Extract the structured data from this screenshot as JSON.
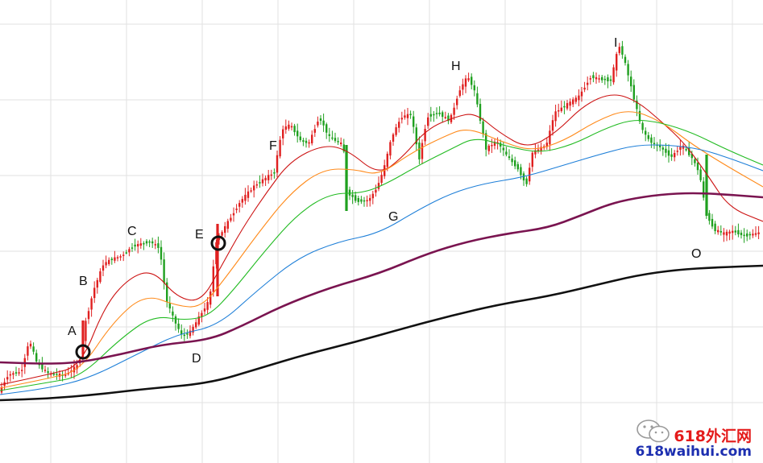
{
  "chart_data": {
    "type": "candlestick",
    "title": "",
    "xlabel": "",
    "ylabel": "",
    "ylim": [
      0,
      575
    ],
    "grid": true,
    "legend": "none",
    "colors": {
      "up": "#e02020",
      "down": "#1fa01f",
      "ma_fast": "#cc1111",
      "ma_orange": "#ff8a1a",
      "ma_green": "#22bb22",
      "ma_blue": "#1e7fd8",
      "ma_purple": "#7a1450",
      "ma_black": "#111111",
      "grid": "#e2e2e2",
      "marker": "#111111"
    },
    "price_path": [
      [
        0,
        488
      ],
      [
        12,
        465
      ],
      [
        28,
        462
      ],
      [
        38,
        422
      ],
      [
        48,
        452
      ],
      [
        62,
        464
      ],
      [
        82,
        466
      ],
      [
        100,
        452
      ],
      [
        108,
        400
      ],
      [
        118,
        360
      ],
      [
        130,
        328
      ],
      [
        140,
        322
      ],
      [
        152,
        318
      ],
      [
        168,
        305
      ],
      [
        188,
        300
      ],
      [
        200,
        308
      ],
      [
        208,
        372
      ],
      [
        218,
        398
      ],
      [
        228,
        418
      ],
      [
        238,
        412
      ],
      [
        250,
        392
      ],
      [
        262,
        372
      ],
      [
        270,
        300
      ],
      [
        285,
        275
      ],
      [
        300,
        250
      ],
      [
        318,
        230
      ],
      [
        342,
        214
      ],
      [
        352,
        160
      ],
      [
        362,
        155
      ],
      [
        375,
        175
      ],
      [
        385,
        178
      ],
      [
        398,
        145
      ],
      [
        410,
        170
      ],
      [
        428,
        180
      ],
      [
        432,
        238
      ],
      [
        445,
        250
      ],
      [
        460,
        248
      ],
      [
        470,
        232
      ],
      [
        478,
        210
      ],
      [
        488,
        170
      ],
      [
        500,
        145
      ],
      [
        512,
        142
      ],
      [
        522,
        198
      ],
      [
        532,
        145
      ],
      [
        545,
        140
      ],
      [
        560,
        150
      ],
      [
        572,
        112
      ],
      [
        582,
        95
      ],
      [
        590,
        110
      ],
      [
        598,
        150
      ],
      [
        605,
        185
      ],
      [
        618,
        175
      ],
      [
        632,
        195
      ],
      [
        645,
        210
      ],
      [
        655,
        230
      ],
      [
        662,
        190
      ],
      [
        680,
        180
      ],
      [
        690,
        140
      ],
      [
        705,
        130
      ],
      [
        720,
        120
      ],
      [
        735,
        95
      ],
      [
        745,
        98
      ],
      [
        760,
        100
      ],
      [
        770,
        55
      ],
      [
        778,
        80
      ],
      [
        788,
        120
      ],
      [
        798,
        160
      ],
      [
        808,
        175
      ],
      [
        820,
        182
      ],
      [
        835,
        195
      ],
      [
        848,
        180
      ],
      [
        860,
        195
      ],
      [
        870,
        215
      ],
      [
        878,
        265
      ],
      [
        888,
        285
      ],
      [
        900,
        290
      ],
      [
        912,
        287
      ],
      [
        925,
        293
      ],
      [
        940,
        290
      ],
      [
        947,
        288
      ]
    ],
    "moving_averages": [
      {
        "color": "#cc1111",
        "points": [
          [
            0,
            478
          ],
          [
            60,
            465
          ],
          [
            100,
            455
          ],
          [
            130,
            380
          ],
          [
            160,
            345
          ],
          [
            190,
            335
          ],
          [
            220,
            370
          ],
          [
            250,
            375
          ],
          [
            275,
            330
          ],
          [
            300,
            285
          ],
          [
            330,
            240
          ],
          [
            360,
            200
          ],
          [
            400,
            180
          ],
          [
            430,
            185
          ],
          [
            470,
            218
          ],
          [
            500,
            195
          ],
          [
            530,
            160
          ],
          [
            565,
            145
          ],
          [
            590,
            140
          ],
          [
            620,
            165
          ],
          [
            655,
            185
          ],
          [
            690,
            165
          ],
          [
            725,
            130
          ],
          [
            760,
            115
          ],
          [
            790,
            125
          ],
          [
            820,
            150
          ],
          [
            850,
            178
          ],
          [
            880,
            220
          ],
          [
            905,
            258
          ],
          [
            947,
            275
          ]
        ]
      },
      {
        "color": "#ff8a1a",
        "points": [
          [
            0,
            482
          ],
          [
            60,
            470
          ],
          [
            100,
            460
          ],
          [
            140,
            400
          ],
          [
            180,
            365
          ],
          [
            220,
            380
          ],
          [
            250,
            382
          ],
          [
            280,
            345
          ],
          [
            320,
            290
          ],
          [
            360,
            240
          ],
          [
            400,
            210
          ],
          [
            440,
            210
          ],
          [
            470,
            218
          ],
          [
            510,
            190
          ],
          [
            550,
            170
          ],
          [
            580,
            158
          ],
          [
            620,
            175
          ],
          [
            660,
            188
          ],
          [
            700,
            175
          ],
          [
            740,
            150
          ],
          [
            780,
            135
          ],
          [
            820,
            150
          ],
          [
            860,
            180
          ],
          [
            900,
            205
          ],
          [
            947,
            232
          ]
        ]
      },
      {
        "color": "#22bb22",
        "points": [
          [
            0,
            485
          ],
          [
            60,
            475
          ],
          [
            100,
            468
          ],
          [
            150,
            420
          ],
          [
            190,
            392
          ],
          [
            230,
            398
          ],
          [
            260,
            392
          ],
          [
            290,
            360
          ],
          [
            330,
            310
          ],
          [
            370,
            265
          ],
          [
            410,
            240
          ],
          [
            450,
            240
          ],
          [
            480,
            228
          ],
          [
            520,
            205
          ],
          [
            560,
            185
          ],
          [
            590,
            170
          ],
          [
            630,
            182
          ],
          [
            670,
            190
          ],
          [
            710,
            180
          ],
          [
            750,
            160
          ],
          [
            785,
            148
          ],
          [
            820,
            152
          ],
          [
            860,
            165
          ],
          [
            900,
            185
          ],
          [
            947,
            205
          ]
        ]
      },
      {
        "color": "#1e7fd8",
        "points": [
          [
            0,
            490
          ],
          [
            60,
            482
          ],
          [
            110,
            470
          ],
          [
            170,
            440
          ],
          [
            220,
            415
          ],
          [
            270,
            405
          ],
          [
            320,
            360
          ],
          [
            370,
            320
          ],
          [
            420,
            300
          ],
          [
            470,
            290
          ],
          [
            520,
            260
          ],
          [
            560,
            240
          ],
          [
            600,
            228
          ],
          [
            650,
            220
          ],
          [
            700,
            205
          ],
          [
            750,
            190
          ],
          [
            790,
            180
          ],
          [
            830,
            180
          ],
          [
            870,
            185
          ],
          [
            910,
            198
          ],
          [
            947,
            212
          ]
        ]
      },
      {
        "color": "#7a1450",
        "points": [
          [
            0,
            450
          ],
          [
            60,
            452
          ],
          [
            100,
            450
          ],
          [
            150,
            440
          ],
          [
            200,
            428
          ],
          [
            260,
            422
          ],
          [
            300,
            405
          ],
          [
            350,
            380
          ],
          [
            410,
            357
          ],
          [
            470,
            340
          ],
          [
            530,
            315
          ],
          [
            580,
            300
          ],
          [
            630,
            290
          ],
          [
            680,
            283
          ],
          [
            720,
            268
          ],
          [
            760,
            252
          ],
          [
            800,
            244
          ],
          [
            840,
            240
          ],
          [
            880,
            240
          ],
          [
            947,
            245
          ]
        ]
      },
      {
        "color": "#111111",
        "points": [
          [
            0,
            497
          ],
          [
            60,
            495
          ],
          [
            120,
            490
          ],
          [
            180,
            483
          ],
          [
            260,
            476
          ],
          [
            320,
            458
          ],
          [
            380,
            440
          ],
          [
            440,
            425
          ],
          [
            500,
            408
          ],
          [
            560,
            392
          ],
          [
            620,
            378
          ],
          [
            680,
            368
          ],
          [
            740,
            354
          ],
          [
            790,
            342
          ],
          [
            840,
            335
          ],
          [
            890,
            332
          ],
          [
            947,
            330
          ]
        ]
      }
    ],
    "circle_markers": [
      [
        103,
        437
      ],
      [
        271,
        302
      ]
    ],
    "annotations": [
      {
        "text": "A",
        "x": 84,
        "y": 416
      },
      {
        "text": "B",
        "x": 98,
        "y": 354
      },
      {
        "text": "C",
        "x": 158,
        "y": 292
      },
      {
        "text": "D",
        "x": 238,
        "y": 450
      },
      {
        "text": "E",
        "x": 242,
        "y": 296
      },
      {
        "text": "F",
        "x": 334,
        "y": 186
      },
      {
        "text": "G",
        "x": 482,
        "y": 274
      },
      {
        "text": "H",
        "x": 560,
        "y": 87
      },
      {
        "text": "I",
        "x": 762,
        "y": 58
      },
      {
        "text": "O",
        "x": 858,
        "y": 320
      }
    ]
  },
  "watermark": {
    "logo_icon": "wechat-logo-icon",
    "text_cn": "618外汇网",
    "text_en": "618waihui.com"
  }
}
